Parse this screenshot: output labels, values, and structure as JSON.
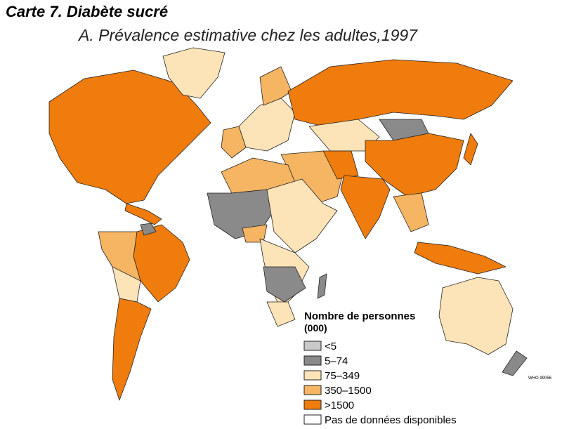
{
  "header": {
    "title": "Carte 7. Diabète sucré",
    "subtitle": "A. Prévalence estimative chez les adultes,1997"
  },
  "legend": {
    "title": "Nombre de personnes",
    "unit": "(000)",
    "items": [
      {
        "label": "<5",
        "color": "#c8c8c8"
      },
      {
        "label": "5–74",
        "color": "#8a8a8a"
      },
      {
        "label": "75–349",
        "color": "#fde4b8"
      },
      {
        "label": "350–1500",
        "color": "#f5b562"
      },
      {
        "label": ">1500",
        "color": "#ef7c0c"
      },
      {
        "label": "Pas de données disponibles",
        "color": "#ffffff"
      }
    ]
  },
  "credit": "WHO 99056"
}
